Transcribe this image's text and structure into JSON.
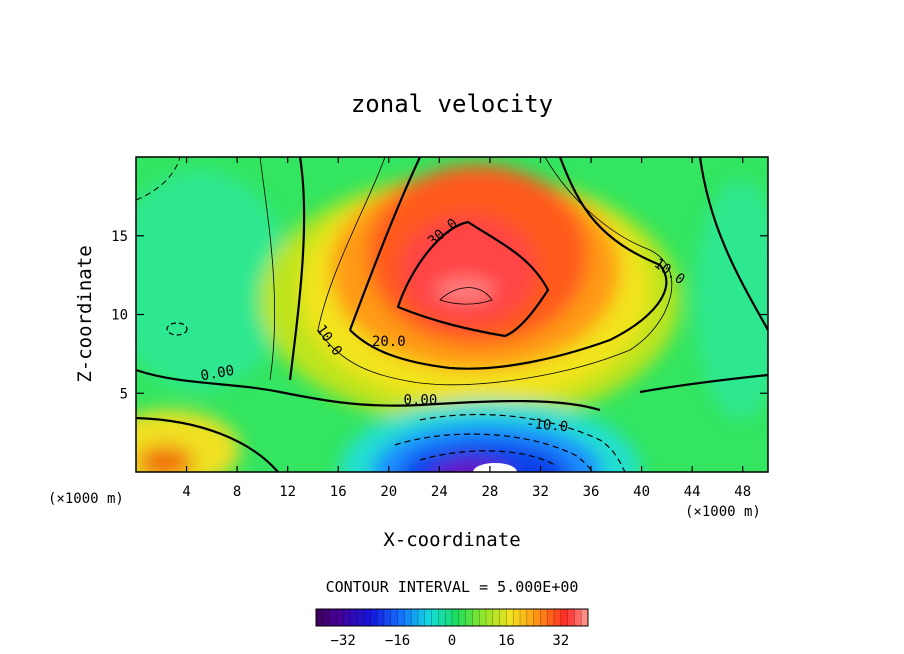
{
  "chart_data": {
    "type": "heatmap",
    "title": "zonal velocity",
    "xlabel": "X-coordinate",
    "ylabel": "Z-coordinate",
    "x_unit": "(×1000 m)",
    "z_unit": "(×1000 m)",
    "xlim": [
      0,
      50
    ],
    "ylim": [
      0,
      20
    ],
    "x_ticks": [
      4,
      8,
      12,
      16,
      20,
      24,
      28,
      32,
      36,
      40,
      44,
      48
    ],
    "y_ticks": [
      5,
      10,
      15
    ],
    "jet_core": {
      "x": 26,
      "z": 11.5,
      "max": 37
    },
    "jet_negative": {
      "x": 27,
      "z": 0,
      "min": -35
    },
    "contour_labels": [
      {
        "text": "30.0",
        "x": 24.5,
        "z": 15.0,
        "angle": -40
      },
      {
        "text": "10.0",
        "x": 42.0,
        "z": 12.5,
        "angle": 35
      },
      {
        "text": "10.0",
        "x": 15.0,
        "z": 8.2,
        "angle": 55
      },
      {
        "text": "20.0",
        "x": 20.0,
        "z": 8.0,
        "angle": 0
      },
      {
        "text": "0.00",
        "x": 6.5,
        "z": 6.0,
        "angle": -10
      },
      {
        "text": "0.00",
        "x": 22.5,
        "z": 4.3,
        "angle": 0
      },
      {
        "text": "-10.0",
        "x": 32.5,
        "z": 2.7,
        "angle": 5
      }
    ],
    "contour_interval_text": "CONTOUR INTERVAL = 5.000E+00",
    "colorbar": {
      "min": -40,
      "max": 40,
      "ticks": [
        -32,
        -16,
        0,
        16,
        32
      ]
    }
  }
}
